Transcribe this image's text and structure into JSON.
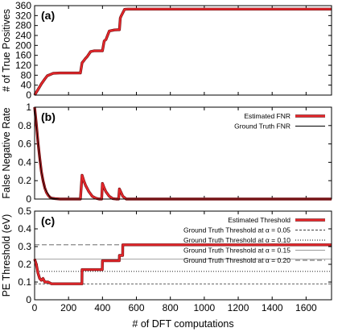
{
  "chart_data": [
    {
      "panel_label": "(a)",
      "type": "line",
      "ylabel": "# of True Positives",
      "xlim": [
        0,
        1750
      ],
      "ylim": [
        0,
        360
      ],
      "yticks": [
        0,
        40,
        80,
        120,
        160,
        200,
        240,
        280,
        320,
        360
      ],
      "series": [
        {
          "color": "#e8262a",
          "x": [
            0,
            20,
            40,
            60,
            75,
            90,
            110,
            150,
            200,
            270,
            280,
            290,
            300,
            310,
            330,
            350,
            380,
            400,
            410,
            420,
            440,
            470,
            490,
            500,
            505,
            510,
            530,
            550,
            1750
          ],
          "y": [
            0,
            22,
            45,
            65,
            78,
            82,
            88,
            89,
            89,
            89,
            130,
            138,
            148,
            155,
            175,
            178,
            178,
            178,
            218,
            223,
            258,
            262,
            263,
            263,
            310,
            318,
            345,
            346,
            346
          ]
        }
      ]
    },
    {
      "panel_label": "(b)",
      "type": "line",
      "ylabel": "False Negative Rate",
      "xlim": [
        0,
        1750
      ],
      "ylim": [
        0,
        1
      ],
      "yticks": [
        0,
        0.2,
        0.4,
        0.6,
        0.8,
        1
      ],
      "series": [
        {
          "name": "Estimated FNR",
          "color": "#e8262a",
          "x": [
            0,
            10,
            20,
            30,
            40,
            50,
            60,
            70,
            80,
            90,
            100,
            120,
            150,
            200,
            270,
            280,
            290,
            300,
            320,
            340,
            360,
            380,
            395,
            400,
            410,
            420,
            440,
            460,
            480,
            495,
            500,
            510,
            520,
            540,
            1750
          ],
          "y": [
            1.0,
            0.82,
            0.62,
            0.45,
            0.3,
            0.2,
            0.12,
            0.07,
            0.04,
            0.02,
            0.01,
            0.005,
            0.0,
            0.0,
            0.0,
            0.26,
            0.2,
            0.15,
            0.08,
            0.03,
            0.01,
            0.0,
            0.0,
            0.17,
            0.12,
            0.08,
            0.03,
            0.005,
            0.0,
            0.0,
            0.11,
            0.07,
            0.03,
            0.0,
            0.0
          ]
        },
        {
          "name": "Ground Truth FNR",
          "color": "#000000",
          "x": [
            0,
            10,
            20,
            30,
            40,
            50,
            60,
            70,
            80,
            90,
            100,
            120,
            150,
            1750
          ],
          "y": [
            1.0,
            0.82,
            0.62,
            0.45,
            0.3,
            0.2,
            0.12,
            0.08,
            0.05,
            0.02,
            0.01,
            0.005,
            0.0,
            0.0
          ]
        }
      ]
    },
    {
      "panel_label": "(c)",
      "type": "line",
      "ylabel": "PE Threshold  (eV)",
      "xlabel": "# of DFT computations",
      "xlim": [
        0,
        1750
      ],
      "ylim": [
        0,
        0.5
      ],
      "xticks": [
        0,
        200,
        400,
        600,
        800,
        1000,
        1200,
        1400,
        1600
      ],
      "yticks": [
        0,
        0.1,
        0.2,
        0.3,
        0.4,
        0.5
      ],
      "series": [
        {
          "name": "Estimated Threshold",
          "color": "#e8262a",
          "x": [
            0,
            10,
            20,
            30,
            40,
            50,
            60,
            80,
            100,
            150,
            200,
            279,
            280,
            399,
            400,
            499,
            500,
            519,
            520,
            1750
          ],
          "y": [
            0.23,
            0.2,
            0.15,
            0.12,
            0.11,
            0.12,
            0.1,
            0.1,
            0.09,
            0.09,
            0.09,
            0.09,
            0.17,
            0.17,
            0.22,
            0.22,
            0.25,
            0.25,
            0.31,
            0.31
          ]
        },
        {
          "name": "Ground Truth Threshold at α = 0.05",
          "style": "dashed-fine",
          "value": 0.09
        },
        {
          "name": "Ground Truth Threshold at α = 0.10",
          "style": "dotted",
          "value": 0.16
        },
        {
          "name": "Ground Truth Threshold at α = 0.15",
          "style": "solid-gray",
          "value": 0.23
        },
        {
          "name": "Ground Truth Threshold at α = 0.20",
          "style": "dashed",
          "value": 0.31
        }
      ]
    }
  ]
}
